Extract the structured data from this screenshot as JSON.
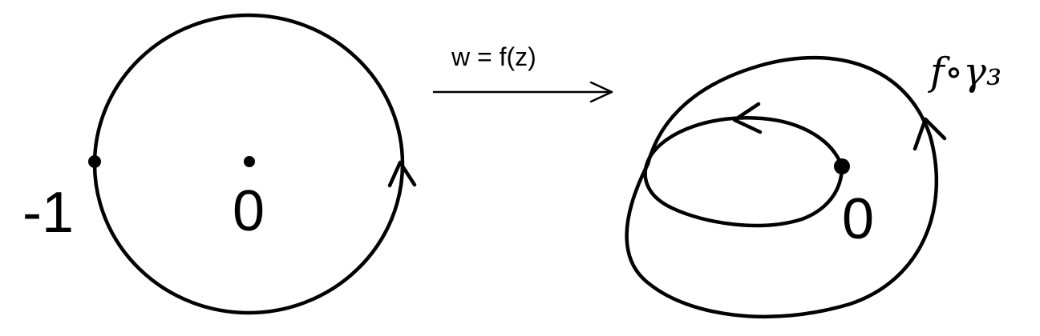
{
  "left_panel": {
    "point_minus_one_label": "-1",
    "origin_label": "0"
  },
  "mapping": {
    "label": "w = f(z)"
  },
  "right_panel": {
    "origin_label": "0",
    "curve_label": "f∘γ₃"
  }
}
